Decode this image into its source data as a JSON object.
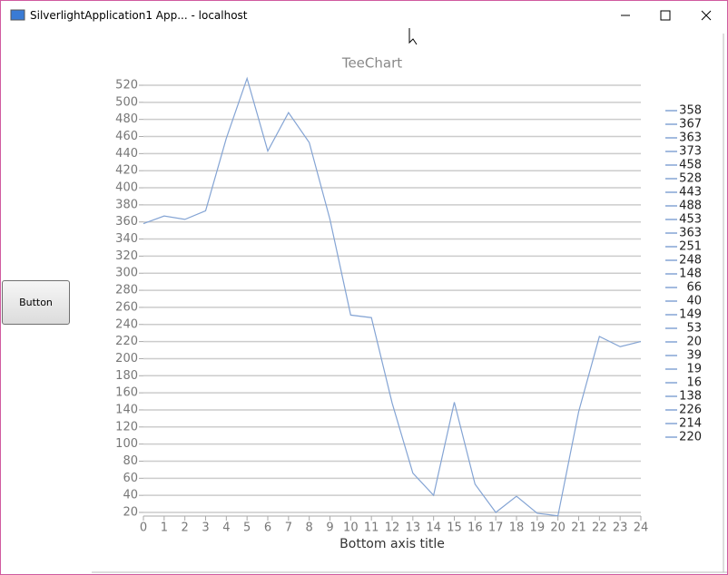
{
  "window": {
    "title": "SilverlightApplication1 App... - localhost"
  },
  "button": {
    "label": "Button"
  },
  "chart_data": {
    "type": "line",
    "title": "TeeChart",
    "x_label": "Bottom axis title",
    "x": [
      0,
      1,
      2,
      3,
      4,
      5,
      6,
      7,
      8,
      9,
      10,
      11,
      12,
      13,
      14,
      15,
      16,
      17,
      18,
      19,
      20,
      21,
      22,
      23,
      24
    ],
    "series": [
      {
        "color": "#84a4d4",
        "values": [
          358,
          367,
          363,
          373,
          458,
          528,
          443,
          488,
          453,
          363,
          251,
          248,
          148,
          66,
          40,
          149,
          53,
          20,
          39,
          19,
          16,
          138,
          226,
          214,
          220
        ]
      }
    ],
    "xlim": [
      0,
      24
    ],
    "xticks": [
      0,
      1,
      2,
      3,
      4,
      5,
      6,
      7,
      8,
      9,
      10,
      11,
      12,
      13,
      14,
      15,
      16,
      17,
      18,
      19,
      20,
      21,
      22,
      23,
      24
    ],
    "ylim": [
      20,
      528
    ],
    "yticks": [
      20,
      40,
      60,
      80,
      100,
      120,
      140,
      160,
      180,
      200,
      220,
      240,
      260,
      280,
      300,
      320,
      340,
      360,
      380,
      400,
      420,
      440,
      460,
      480,
      500,
      520
    ],
    "grid": true
  }
}
